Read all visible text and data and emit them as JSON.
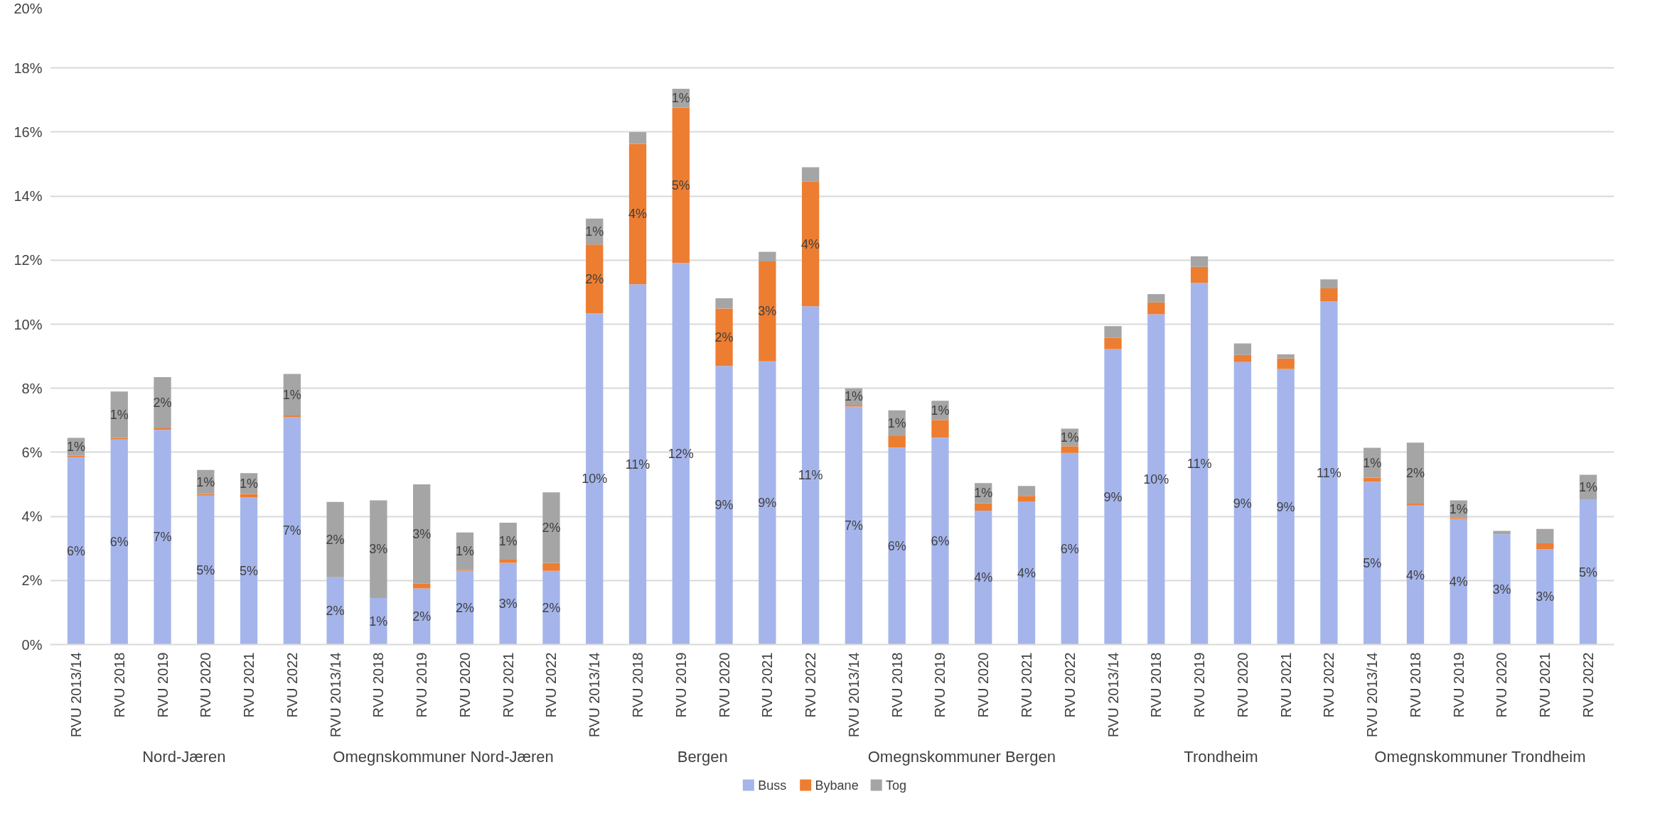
{
  "chart_data": {
    "type": "bar",
    "stacked": true,
    "categories": [
      "RVU 2013/14",
      "RVU 2018",
      "RVU 2019",
      "RVU 2020",
      "RVU 2021",
      "RVU 2022",
      "RVU 2013/14",
      "RVU 2018",
      "RVU 2019",
      "RVU 2020",
      "RVU 2021",
      "RVU 2022",
      "RVU 2013/14",
      "RVU 2018",
      "RVU 2019",
      "RVU 2020",
      "RVU 2021",
      "RVU 2022",
      "RVU 2013/14",
      "RVU 2018",
      "RVU 2019",
      "RVU 2020",
      "RVU 2021",
      "RVU 2022",
      "RVU 2013/14",
      "RVU 2018",
      "RVU 2019",
      "RVU 2020",
      "RVU 2021",
      "RVU 2022",
      "RVU 2013/14",
      "RVU 2018",
      "RVU 2019",
      "RVU 2020",
      "RVU 2021",
      "RVU 2022"
    ],
    "series": [
      {
        "name": "Buss",
        "color": "#a5b5eb",
        "values": [
          5.85,
          6.4,
          6.7,
          4.65,
          4.6,
          7.1,
          2.1,
          1.45,
          1.75,
          2.3,
          2.55,
          2.3,
          10.34,
          11.25,
          11.91,
          8.7,
          8.84,
          10.56,
          7.43,
          6.15,
          6.46,
          4.18,
          4.46,
          5.98,
          9.22,
          10.31,
          11.29,
          8.82,
          8.6,
          10.72,
          5.08,
          4.34,
          3.92,
          3.44,
          2.98,
          4.52
        ],
        "value_labels": [
          "6%",
          "6%",
          "7%",
          "5%",
          "5%",
          "7%",
          "2%",
          "1%",
          "2%",
          "2%",
          "3%",
          "2%",
          "10%",
          "11%",
          "12%",
          "9%",
          "9%",
          "11%",
          "7%",
          "6%",
          "6%",
          "4%",
          "4%",
          "6%",
          "9%",
          "10%",
          "11%",
          "9%",
          "9%",
          "11%",
          "5%",
          "4%",
          "4%",
          "3%",
          "3%",
          "5%"
        ]
      },
      {
        "name": "Bybane",
        "color": "#ed7d31",
        "values": [
          0.05,
          0.05,
          0.05,
          0.05,
          0.1,
          0.05,
          0,
          0,
          0.15,
          0.02,
          0.1,
          0.25,
          2.15,
          4.38,
          4.85,
          1.79,
          3.12,
          3.89,
          0.05,
          0.36,
          0.55,
          0.23,
          0.18,
          0.21,
          0.36,
          0.37,
          0.5,
          0.22,
          0.33,
          0.4,
          0.13,
          0.06,
          0.03,
          0,
          0.18,
          0
        ],
        "value_labels": [
          null,
          null,
          null,
          null,
          null,
          null,
          null,
          null,
          null,
          null,
          null,
          null,
          "2%",
          "4%",
          "5%",
          "2%",
          "3%",
          "4%",
          null,
          null,
          null,
          null,
          null,
          null,
          null,
          null,
          null,
          null,
          null,
          null,
          null,
          null,
          null,
          null,
          null,
          null
        ]
      },
      {
        "name": "Tog",
        "color": "#a5a5a5",
        "values": [
          0.55,
          1.45,
          1.6,
          0.75,
          0.65,
          1.3,
          2.35,
          3.05,
          3.1,
          1.18,
          1.15,
          2.2,
          0.81,
          0.37,
          0.59,
          0.32,
          0.3,
          0.45,
          0.52,
          0.8,
          0.6,
          0.63,
          0.31,
          0.55,
          0.36,
          0.26,
          0.33,
          0.36,
          0.13,
          0.28,
          0.93,
          1.9,
          0.55,
          0.11,
          0.45,
          0.78
        ],
        "value_labels": [
          "1%",
          "1%",
          "2%",
          "1%",
          "1%",
          "1%",
          "2%",
          "3%",
          "3%",
          "1%",
          "1%",
          "2%",
          "1%",
          null,
          "1%",
          null,
          null,
          null,
          "1%",
          "1%",
          "1%",
          "1%",
          null,
          "1%",
          null,
          null,
          null,
          null,
          null,
          null,
          "1%",
          "2%",
          "1%",
          null,
          null,
          "1%"
        ]
      }
    ],
    "ylim": [
      0,
      20
    ],
    "yticks": [
      {
        "value": 0,
        "label": "0%"
      },
      {
        "value": 2,
        "label": "2%"
      },
      {
        "value": 4,
        "label": "4%"
      },
      {
        "value": 6,
        "label": "6%"
      },
      {
        "value": 8,
        "label": "8%"
      },
      {
        "value": 10,
        "label": "10%"
      },
      {
        "value": 12,
        "label": "12%"
      },
      {
        "value": 14,
        "label": "14%"
      },
      {
        "value": 16,
        "label": "16%"
      },
      {
        "value": 18,
        "label": "18%"
      },
      {
        "value": 20,
        "label": "20%"
      }
    ],
    "annotations": [
      "Nord-Jæren",
      "Omegnskommuner Nord-Jæren",
      "Bergen",
      "Omegnskommuner Bergen",
      "Trondheim",
      "Omegnskommuner Trondheim"
    ],
    "grid": "y",
    "legend": "bottom"
  }
}
